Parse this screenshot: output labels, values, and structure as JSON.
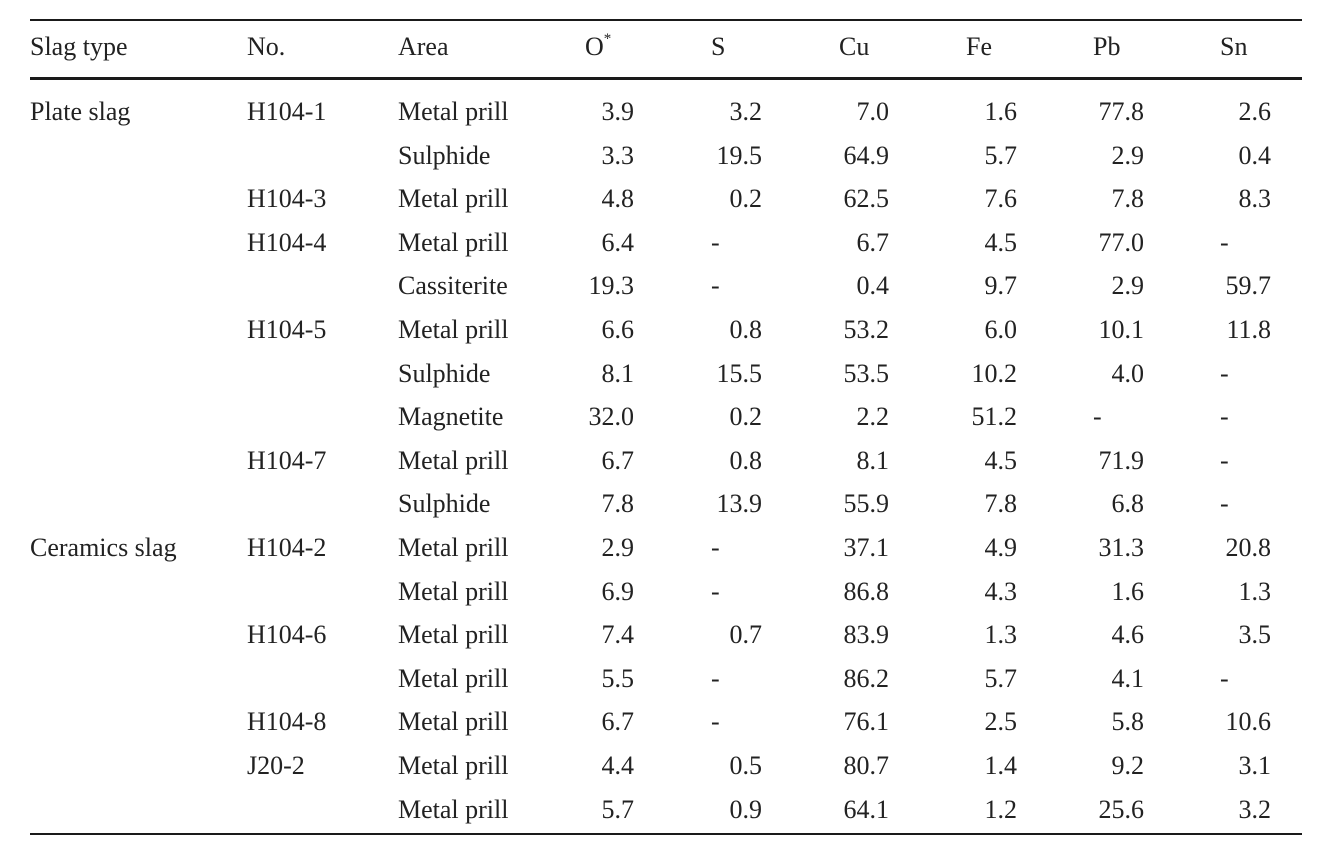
{
  "table": {
    "headers": {
      "slag_type": "Slag type",
      "no": "No.",
      "area": "Area",
      "o": "O",
      "o_mark": "*",
      "s": "S",
      "cu": "Cu",
      "fe": "Fe",
      "pb": "Pb",
      "sn": "Sn"
    },
    "rows": [
      {
        "slag_type": "Plate slag",
        "no": "H104-1",
        "area": "Metal prill",
        "o": "3.9",
        "s": "3.2",
        "cu": "7.0",
        "fe": "1.6",
        "pb": "77.8",
        "sn": "2.6"
      },
      {
        "slag_type": "",
        "no": "",
        "area": "Sulphide",
        "o": "3.3",
        "s": "19.5",
        "cu": "64.9",
        "fe": "5.7",
        "pb": "2.9",
        "sn": "0.4"
      },
      {
        "slag_type": "",
        "no": "H104-3",
        "area": "Metal prill",
        "o": "4.8",
        "s": "0.2",
        "cu": "62.5",
        "fe": "7.6",
        "pb": "7.8",
        "sn": "8.3"
      },
      {
        "slag_type": "",
        "no": "H104-4",
        "area": "Metal prill",
        "o": "6.4",
        "s": "-",
        "cu": "6.7",
        "fe": "4.5",
        "pb": "77.0",
        "sn": "-"
      },
      {
        "slag_type": "",
        "no": "",
        "area": "Cassiterite",
        "o": "19.3",
        "s": "-",
        "cu": "0.4",
        "fe": "9.7",
        "pb": "2.9",
        "sn": "59.7"
      },
      {
        "slag_type": "",
        "no": "H104-5",
        "area": "Metal prill",
        "o": "6.6",
        "s": "0.8",
        "cu": "53.2",
        "fe": "6.0",
        "pb": "10.1",
        "sn": "11.8"
      },
      {
        "slag_type": "",
        "no": "",
        "area": "Sulphide",
        "o": "8.1",
        "s": "15.5",
        "cu": "53.5",
        "fe": "10.2",
        "pb": "4.0",
        "sn": "-"
      },
      {
        "slag_type": "",
        "no": "",
        "area": "Magnetite",
        "o": "32.0",
        "s": "0.2",
        "cu": "2.2",
        "fe": "51.2",
        "pb": "-",
        "sn": "-"
      },
      {
        "slag_type": "",
        "no": "H104-7",
        "area": "Metal prill",
        "o": "6.7",
        "s": "0.8",
        "cu": "8.1",
        "fe": "4.5",
        "pb": "71.9",
        "sn": "-"
      },
      {
        "slag_type": "",
        "no": "",
        "area": "Sulphide",
        "o": "7.8",
        "s": "13.9",
        "cu": "55.9",
        "fe": "7.8",
        "pb": "6.8",
        "sn": "-"
      },
      {
        "slag_type": "Ceramics slag",
        "no": "H104-2",
        "area": "Metal prill",
        "o": "2.9",
        "s": "-",
        "cu": "37.1",
        "fe": "4.9",
        "pb": "31.3",
        "sn": "20.8"
      },
      {
        "slag_type": "",
        "no": "",
        "area": "Metal prill",
        "o": "6.9",
        "s": "-",
        "cu": "86.8",
        "fe": "4.3",
        "pb": "1.6",
        "sn": "1.3"
      },
      {
        "slag_type": "",
        "no": "H104-6",
        "area": "Metal prill",
        "o": "7.4",
        "s": "0.7",
        "cu": "83.9",
        "fe": "1.3",
        "pb": "4.6",
        "sn": "3.5"
      },
      {
        "slag_type": "",
        "no": "",
        "area": "Metal prill",
        "o": "5.5",
        "s": "-",
        "cu": "86.2",
        "fe": "5.7",
        "pb": "4.1",
        "sn": "-"
      },
      {
        "slag_type": "",
        "no": "H104-8",
        "area": "Metal prill",
        "o": "6.7",
        "s": "-",
        "cu": "76.1",
        "fe": "2.5",
        "pb": "5.8",
        "sn": "10.6"
      },
      {
        "slag_type": "",
        "no": "J20-2",
        "area": "Metal prill",
        "o": "4.4",
        "s": "0.5",
        "cu": "80.7",
        "fe": "1.4",
        "pb": "9.2",
        "sn": "3.1"
      },
      {
        "slag_type": "",
        "no": "",
        "area": "Metal prill",
        "o": "5.7",
        "s": "0.9",
        "cu": "64.1",
        "fe": "1.2",
        "pb": "25.6",
        "sn": "3.2"
      }
    ]
  }
}
